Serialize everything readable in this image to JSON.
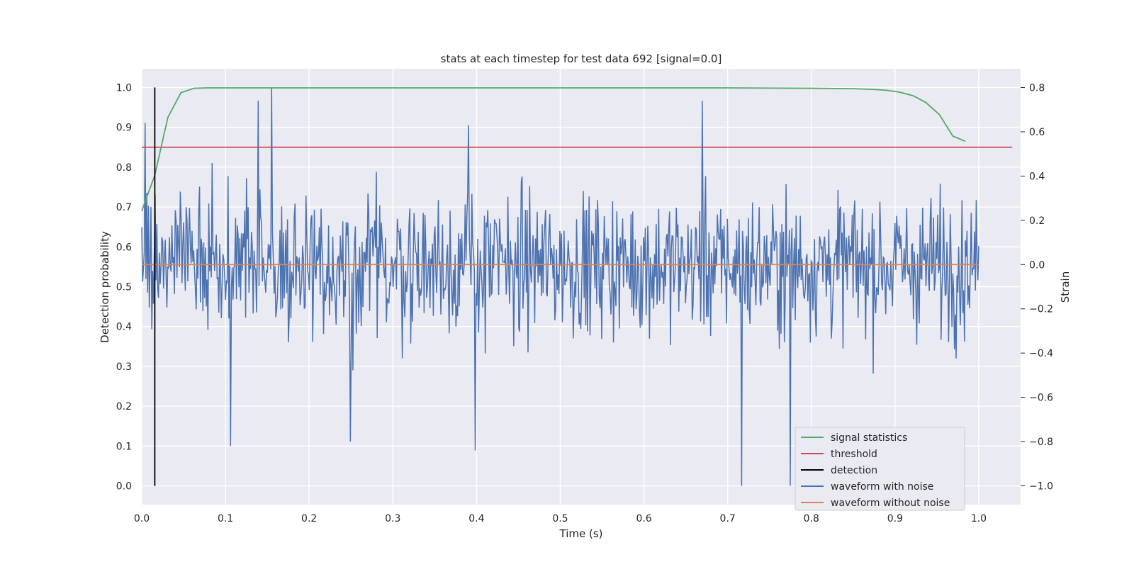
{
  "chart_data": {
    "type": "line",
    "title": "stats at each timestep for test data 692 [signal=0.0]",
    "xlabel": "Time (s)",
    "ylabel": "Detection probability",
    "ylabel_right": "Strain",
    "xlim": [
      0.0,
      1.05
    ],
    "ylim": [
      -0.047,
      1.047
    ],
    "ylim_right": [
      -1.085,
      0.885
    ],
    "x_ticks": [
      0.0,
      0.1,
      0.2,
      0.3,
      0.4,
      0.5,
      0.6,
      0.7,
      0.8,
      0.9,
      1.0
    ],
    "x_tick_labels": [
      "0.0",
      "0.1",
      "0.2",
      "0.3",
      "0.4",
      "0.5",
      "0.6",
      "0.7",
      "0.8",
      "0.9",
      "1.0"
    ],
    "y_ticks": [
      0.0,
      0.1,
      0.2,
      0.3,
      0.4,
      0.5,
      0.6,
      0.7,
      0.8,
      0.9,
      1.0
    ],
    "y_tick_labels": [
      "0.0",
      "0.1",
      "0.2",
      "0.3",
      "0.4",
      "0.5",
      "0.6",
      "0.7",
      "0.8",
      "0.9",
      "1.0"
    ],
    "y_right_ticks": [
      -1.0,
      -0.8,
      -0.6,
      -0.4,
      -0.2,
      0.0,
      0.2,
      0.4,
      0.6,
      0.8
    ],
    "y_right_tick_labels": [
      "−1.0",
      "−0.8",
      "−0.6",
      "−0.4",
      "−0.2",
      "0.0",
      "0.2",
      "0.4",
      "0.6",
      "0.8"
    ],
    "grid": true,
    "legend_position": "bottom-right",
    "series": [
      {
        "name": "signal statistics",
        "axis": "left",
        "color": "#55a868",
        "x": [
          0.0,
          0.0156,
          0.0312,
          0.0469,
          0.0625,
          0.0781,
          0.1,
          0.2,
          0.3,
          0.4,
          0.5,
          0.6,
          0.7,
          0.8,
          0.85,
          0.875,
          0.89,
          0.906,
          0.922,
          0.937,
          0.953,
          0.969,
          0.984
        ],
        "values": [
          0.69,
          0.78,
          0.925,
          0.987,
          0.998,
          0.999,
          0.999,
          0.999,
          0.999,
          0.999,
          0.999,
          0.999,
          0.999,
          0.998,
          0.997,
          0.995,
          0.993,
          0.988,
          0.979,
          0.962,
          0.932,
          0.878,
          0.865
        ]
      },
      {
        "name": "threshold",
        "axis": "left",
        "color": "#c44e52",
        "x": [
          0.0,
          1.04
        ],
        "values": [
          0.85,
          0.85
        ]
      },
      {
        "name": "detection",
        "axis": "left",
        "color": "#000000",
        "x": [
          0.0156,
          0.0156
        ],
        "values": [
          0.0,
          1.0
        ]
      },
      {
        "name": "waveform with noise",
        "axis": "right",
        "color": "#4c72b0",
        "x_start": 0.0,
        "x_end": 1.0,
        "samples": 1000,
        "ymin": -1.0,
        "ymax": 0.8,
        "extrema": [
          {
            "x": 0.155,
            "value": 0.8
          },
          {
            "x": 0.004,
            "value": 0.64
          },
          {
            "x": 0.139,
            "value": 0.74
          },
          {
            "x": 0.39,
            "value": 0.63
          },
          {
            "x": 0.67,
            "value": 0.74
          },
          {
            "x": 0.106,
            "value": -0.82
          },
          {
            "x": 0.398,
            "value": -0.84
          },
          {
            "x": 0.249,
            "value": -0.8
          },
          {
            "x": 0.717,
            "value": -1.0
          },
          {
            "x": 0.775,
            "value": -1.0
          }
        ]
      },
      {
        "name": "waveform without noise",
        "axis": "right",
        "color": "#dd8452",
        "x": [
          0.0,
          1.0
        ],
        "values": [
          0.0,
          0.0
        ]
      }
    ]
  }
}
